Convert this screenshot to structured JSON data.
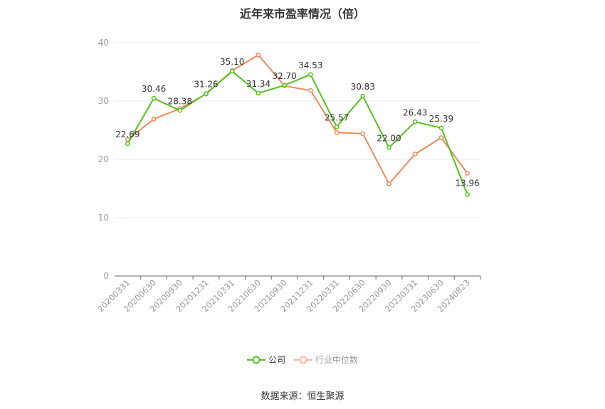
{
  "title": "近年来市盈率情况（倍）",
  "source": "数据来源：恒生聚源",
  "colors": {
    "company": "#52c41a",
    "industry": "#f2895c",
    "grid": "#e6e9f0",
    "axis": "#999999"
  },
  "chart_data": {
    "type": "line",
    "title": "近年来市盈率情况（倍）",
    "categories": [
      "20200331",
      "20200630",
      "20200930",
      "20201231",
      "20210331",
      "20210630",
      "20210930",
      "20211231",
      "20220331",
      "20220630",
      "20220930",
      "20230331",
      "20230630",
      "20240823"
    ],
    "ylim": [
      0,
      40
    ],
    "yticks": [
      0,
      10,
      20,
      30,
      40
    ],
    "grid": true,
    "legend_position": "bottom",
    "series": [
      {
        "name": "公司",
        "values": [
          22.69,
          30.46,
          28.38,
          31.26,
          35.1,
          31.34,
          32.7,
          34.53,
          25.57,
          30.83,
          22.0,
          26.43,
          25.39,
          13.96
        ],
        "labels": [
          "22.69",
          "30.46",
          "28.38",
          "31.26",
          "35.10",
          "31.34",
          "32.70",
          "34.53",
          "25.57",
          "30.83",
          "22.00",
          "26.43",
          "25.39",
          "13.96"
        ]
      },
      {
        "name": "行业中位数",
        "values": [
          23.4,
          26.9,
          28.7,
          31.2,
          35.2,
          37.9,
          32.6,
          31.8,
          24.6,
          24.4,
          15.8,
          20.9,
          23.7,
          17.6
        ]
      }
    ]
  }
}
